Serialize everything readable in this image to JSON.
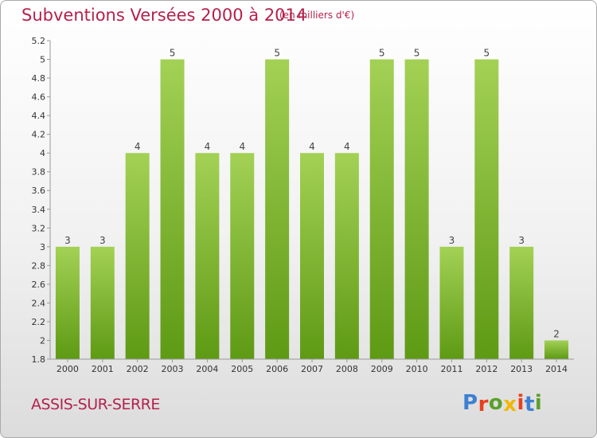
{
  "header": {
    "title": "Subventions Versées 2000 à 2014",
    "subtitle": "(en milliers d'€)"
  },
  "footer": {
    "commune": "ASSIS-SUR-SERRE",
    "logo_text": "Proxiti",
    "logo_colors": [
      "#3d7fd3",
      "#e8401c",
      "#5aa02c",
      "#f2b705",
      "#e8401c",
      "#3d7fd3",
      "#5aa02c"
    ]
  },
  "chart_data": {
    "type": "bar",
    "title": "Subventions Versées 2000 à 2014",
    "subtitle": "(en milliers d'€)",
    "xlabel": "",
    "ylabel": "",
    "categories": [
      "2000",
      "2001",
      "2002",
      "2003",
      "2004",
      "2005",
      "2006",
      "2007",
      "2008",
      "2009",
      "2010",
      "2011",
      "2012",
      "2013",
      "2014"
    ],
    "values": [
      3,
      3,
      4,
      5,
      4,
      4,
      5,
      4,
      4,
      5,
      5,
      3,
      5,
      3,
      2
    ],
    "data_labels": [
      "3",
      "3",
      "4",
      "5",
      "4",
      "4",
      "5",
      "4",
      "4",
      "5",
      "5",
      "3",
      "5",
      "3",
      "2"
    ],
    "y_tick_labels": [
      "1.8",
      "2",
      "2.2",
      "2.4",
      "2.6",
      "2.8",
      "3",
      "3.2",
      "3.4",
      "3.6",
      "3.8",
      "4",
      "4.2",
      "4.4",
      "4.6",
      "4.8",
      "5",
      "5.2"
    ],
    "ylim": [
      1.8,
      5.2
    ],
    "grid": false,
    "bar_color": "#7bb62a"
  }
}
